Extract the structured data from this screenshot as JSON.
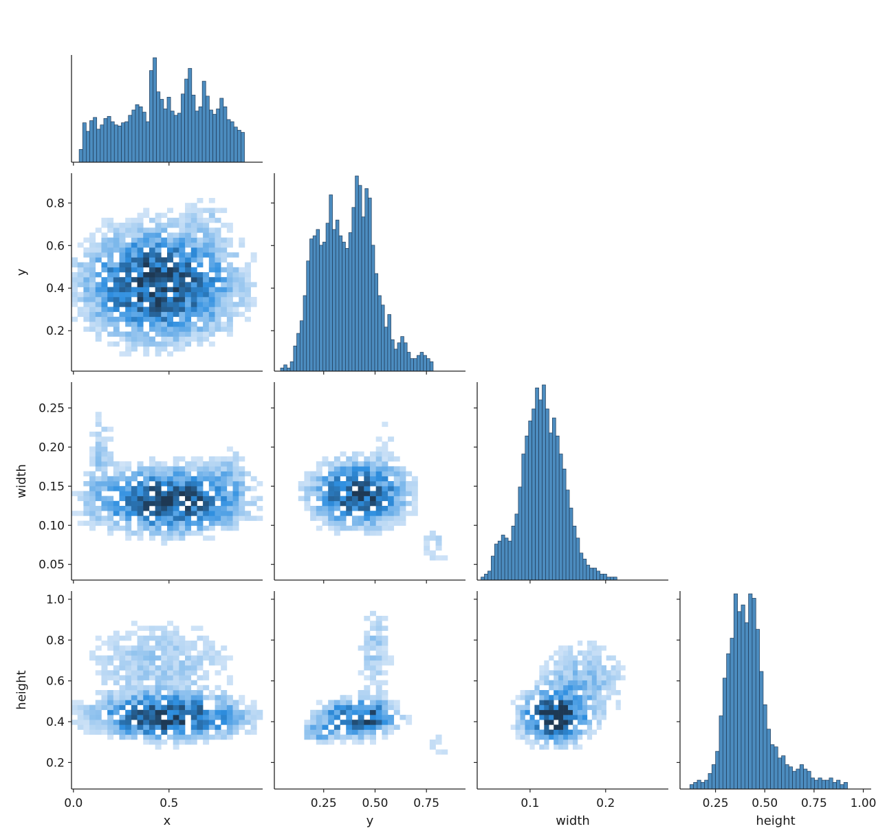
{
  "chart_data": {
    "type": "pairplot",
    "variables": [
      "x",
      "y",
      "width",
      "height"
    ],
    "style": {
      "bar_color": "#4c8cbf",
      "bar_edge": "#1f3a57",
      "heat_light": "#cfe3f7",
      "heat_mid": "#2f8fe0",
      "heat_dark": "#1e3954"
    },
    "axes": {
      "x": {
        "label": "x",
        "range": [
          -0.01,
          0.99
        ],
        "ticks": [
          0.0,
          0.5
        ],
        "tick_labels": [
          "0.0",
          "0.5"
        ]
      },
      "y": {
        "label": "y",
        "range": [
          0.01,
          0.94
        ],
        "ticks": [
          0.2,
          0.4,
          0.6,
          0.8
        ],
        "tick_labels": [
          "0.2",
          "0.4",
          "0.6",
          "0.8"
        ],
        "x_ticks": [
          0.25,
          0.5,
          0.75
        ],
        "x_tick_labels": [
          "0.25",
          "0.50",
          "0.75"
        ]
      },
      "width": {
        "label": "width",
        "range": [
          0.03,
          0.283
        ],
        "ticks": [
          0.05,
          0.1,
          0.15,
          0.2,
          0.25
        ],
        "tick_labels": [
          "0.05",
          "0.10",
          "0.15",
          "0.20",
          "0.25"
        ],
        "x_ticks": [
          0.1,
          0.2
        ],
        "x_tick_labels": [
          "0.1",
          "0.2"
        ]
      },
      "height": {
        "label": "height",
        "range": [
          0.07,
          1.04
        ],
        "ticks": [
          0.2,
          0.4,
          0.6,
          0.8,
          1.0
        ],
        "tick_labels": [
          "0.2",
          "0.4",
          "0.6",
          "0.8",
          "1.0"
        ],
        "x_ticks": [
          0.25,
          0.5,
          0.75,
          1.0
        ],
        "x_tick_labels": [
          "0.25",
          "0.50",
          "0.75",
          "1.00"
        ]
      }
    },
    "histograms": {
      "x": {
        "bin_start": 0.03,
        "bin_width": 0.0184,
        "counts": [
          12,
          37,
          29,
          39,
          42,
          31,
          35,
          41,
          43,
          38,
          35,
          34,
          37,
          38,
          44,
          49,
          54,
          52,
          47,
          38,
          86,
          98,
          66,
          59,
          50,
          61,
          48,
          44,
          46,
          64,
          78,
          88,
          63,
          48,
          52,
          76,
          62,
          49,
          45,
          50,
          60,
          52,
          40,
          38,
          33,
          30,
          28
        ]
      },
      "y": {
        "bin_start": 0.04,
        "bin_width": 0.0158,
        "counts": [
          1,
          2,
          1,
          3,
          8,
          12,
          16,
          24,
          35,
          42,
          43,
          45,
          40,
          41,
          47,
          56,
          45,
          48,
          43,
          41,
          39,
          44,
          52,
          62,
          59,
          49,
          58,
          55,
          40,
          31,
          24,
          21,
          14,
          18,
          10,
          7,
          9,
          11,
          9,
          6,
          4,
          4,
          5,
          6,
          5,
          4,
          3
        ]
      },
      "width": {
        "bin_start": 0.035,
        "bin_width": 0.0045,
        "counts": [
          1,
          2,
          3,
          8,
          12,
          13,
          15,
          14,
          13,
          18,
          22,
          31,
          42,
          48,
          53,
          57,
          64,
          60,
          65,
          57,
          49,
          54,
          48,
          42,
          37,
          30,
          24,
          18,
          14,
          9,
          7,
          5,
          4,
          4,
          3,
          2,
          2,
          1,
          1,
          1
        ]
      },
      "height": {
        "bin_start": 0.12,
        "bin_width": 0.0186,
        "counts": [
          2,
          3,
          4,
          3,
          4,
          7,
          11,
          17,
          33,
          50,
          61,
          68,
          88,
          80,
          83,
          75,
          88,
          86,
          72,
          53,
          38,
          27,
          20,
          19,
          14,
          15,
          11,
          10,
          8,
          9,
          11,
          9,
          8,
          5,
          4,
          5,
          4,
          4,
          5,
          3,
          4,
          2,
          3
        ]
      }
    },
    "heatmaps": [
      {
        "x_var": "x",
        "y_var": "y",
        "seed": 11,
        "bins": [
          32,
          40
        ],
        "clusters": [
          {
            "cx": 0.45,
            "cy": 0.42,
            "sx": 0.26,
            "sy": 0.17,
            "w": 1.0
          },
          {
            "cx": 0.7,
            "cy": 0.78,
            "sx": 0.07,
            "sy": 0.07,
            "w": 0.18
          },
          {
            "cx": 0.12,
            "cy": 0.85,
            "sx": 0.05,
            "sy": 0.05,
            "w": 0.08
          }
        ]
      },
      {
        "x_var": "x",
        "y_var": "width",
        "seed": 23,
        "bins": [
          32,
          40
        ],
        "clusters": [
          {
            "cx": 0.5,
            "cy": 0.132,
            "sx": 0.26,
            "sy": 0.027,
            "w": 1.0
          },
          {
            "cx": 0.14,
            "cy": 0.2,
            "sx": 0.05,
            "sy": 0.04,
            "w": 0.25
          },
          {
            "cx": 0.82,
            "cy": 0.175,
            "sx": 0.06,
            "sy": 0.03,
            "w": 0.18
          }
        ]
      },
      {
        "x_var": "y",
        "y_var": "width",
        "seed": 37,
        "bins": [
          32,
          40
        ],
        "clusters": [
          {
            "cx": 0.42,
            "cy": 0.14,
            "sx": 0.15,
            "sy": 0.027,
            "w": 1.0
          },
          {
            "cx": 0.8,
            "cy": 0.075,
            "sx": 0.06,
            "sy": 0.02,
            "w": 0.22
          },
          {
            "cx": 0.56,
            "cy": 0.22,
            "sx": 0.05,
            "sy": 0.03,
            "w": 0.14
          }
        ]
      },
      {
        "x_var": "x",
        "y_var": "height",
        "seed": 41,
        "bins": [
          32,
          40
        ],
        "clusters": [
          {
            "cx": 0.5,
            "cy": 0.42,
            "sx": 0.25,
            "sy": 0.07,
            "w": 1.0
          },
          {
            "cx": 0.45,
            "cy": 0.7,
            "sx": 0.3,
            "sy": 0.15,
            "w": 0.28
          }
        ]
      },
      {
        "x_var": "y",
        "y_var": "height",
        "seed": 53,
        "bins": [
          32,
          40
        ],
        "clusters": [
          {
            "cx": 0.42,
            "cy": 0.42,
            "sx": 0.12,
            "sy": 0.06,
            "w": 1.0
          },
          {
            "cx": 0.22,
            "cy": 0.34,
            "sx": 0.06,
            "sy": 0.04,
            "w": 0.35
          },
          {
            "cx": 0.5,
            "cy": 0.75,
            "sx": 0.06,
            "sy": 0.15,
            "w": 0.3
          },
          {
            "cx": 0.8,
            "cy": 0.28,
            "sx": 0.05,
            "sy": 0.06,
            "w": 0.2
          }
        ]
      },
      {
        "x_var": "width",
        "y_var": "height",
        "seed": 67,
        "bins": [
          40,
          40
        ],
        "clusters": [
          {
            "cx": 0.13,
            "cy": 0.42,
            "sx": 0.028,
            "sy": 0.08,
            "w": 1.0
          },
          {
            "cx": 0.17,
            "cy": 0.6,
            "sx": 0.04,
            "sy": 0.14,
            "w": 0.35
          },
          {
            "cx": 0.22,
            "cy": 0.88,
            "sx": 0.02,
            "sy": 0.06,
            "w": 0.06
          }
        ]
      }
    ]
  }
}
